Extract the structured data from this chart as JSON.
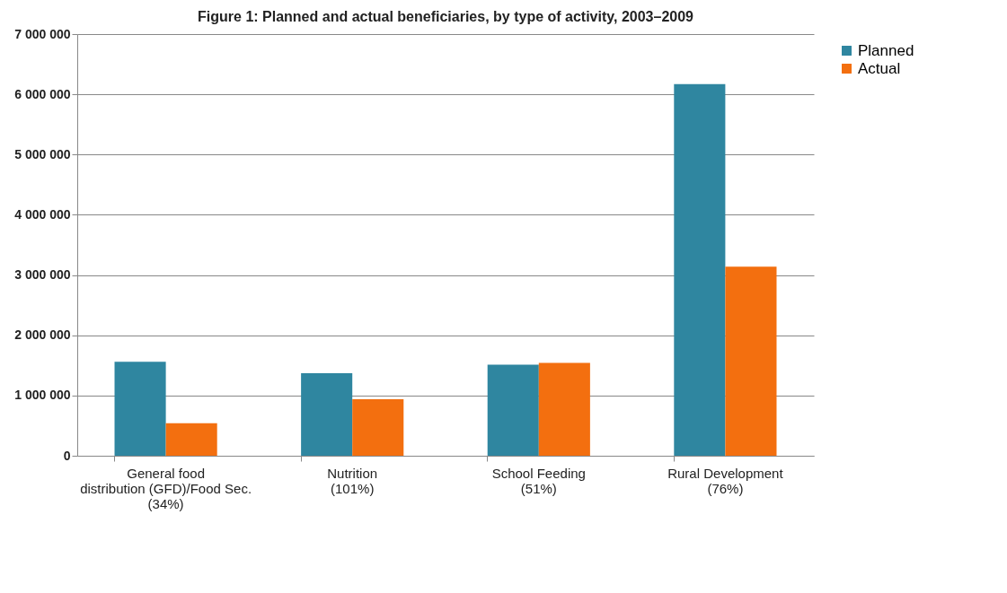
{
  "chart_data": {
    "type": "bar",
    "title": "Figure 1: Planned and actual beneficiaries, by type of activity, 2003–2009",
    "categories": [
      "General food\ndistribution (GFD)/Food Sec.\n(34%)",
      "Nutrition\n(101%)",
      "School Feeding\n(51%)",
      "Rural Development\n(76%)"
    ],
    "series": [
      {
        "name": "Planned",
        "color": "#2f86a0",
        "values": [
          1560000,
          1370000,
          1510000,
          6170000
        ]
      },
      {
        "name": "Actual",
        "color": "#f36f0f",
        "values": [
          540000,
          940000,
          1540000,
          3140000
        ]
      }
    ],
    "ylim": [
      0,
      7000000
    ],
    "yticks": [
      {
        "value": 0,
        "label": "0"
      },
      {
        "value": 1000000,
        "label": "1 000 000"
      },
      {
        "value": 2000000,
        "label": "2 000 000"
      },
      {
        "value": 3000000,
        "label": "3 000 000"
      },
      {
        "value": 4000000,
        "label": "4 000 000"
      },
      {
        "value": 5000000,
        "label": "5 000 000"
      },
      {
        "value": 6000000,
        "label": "6 000 000"
      },
      {
        "value": 7000000,
        "label": "7 000 000"
      }
    ],
    "grid": "y",
    "legend": "right"
  }
}
